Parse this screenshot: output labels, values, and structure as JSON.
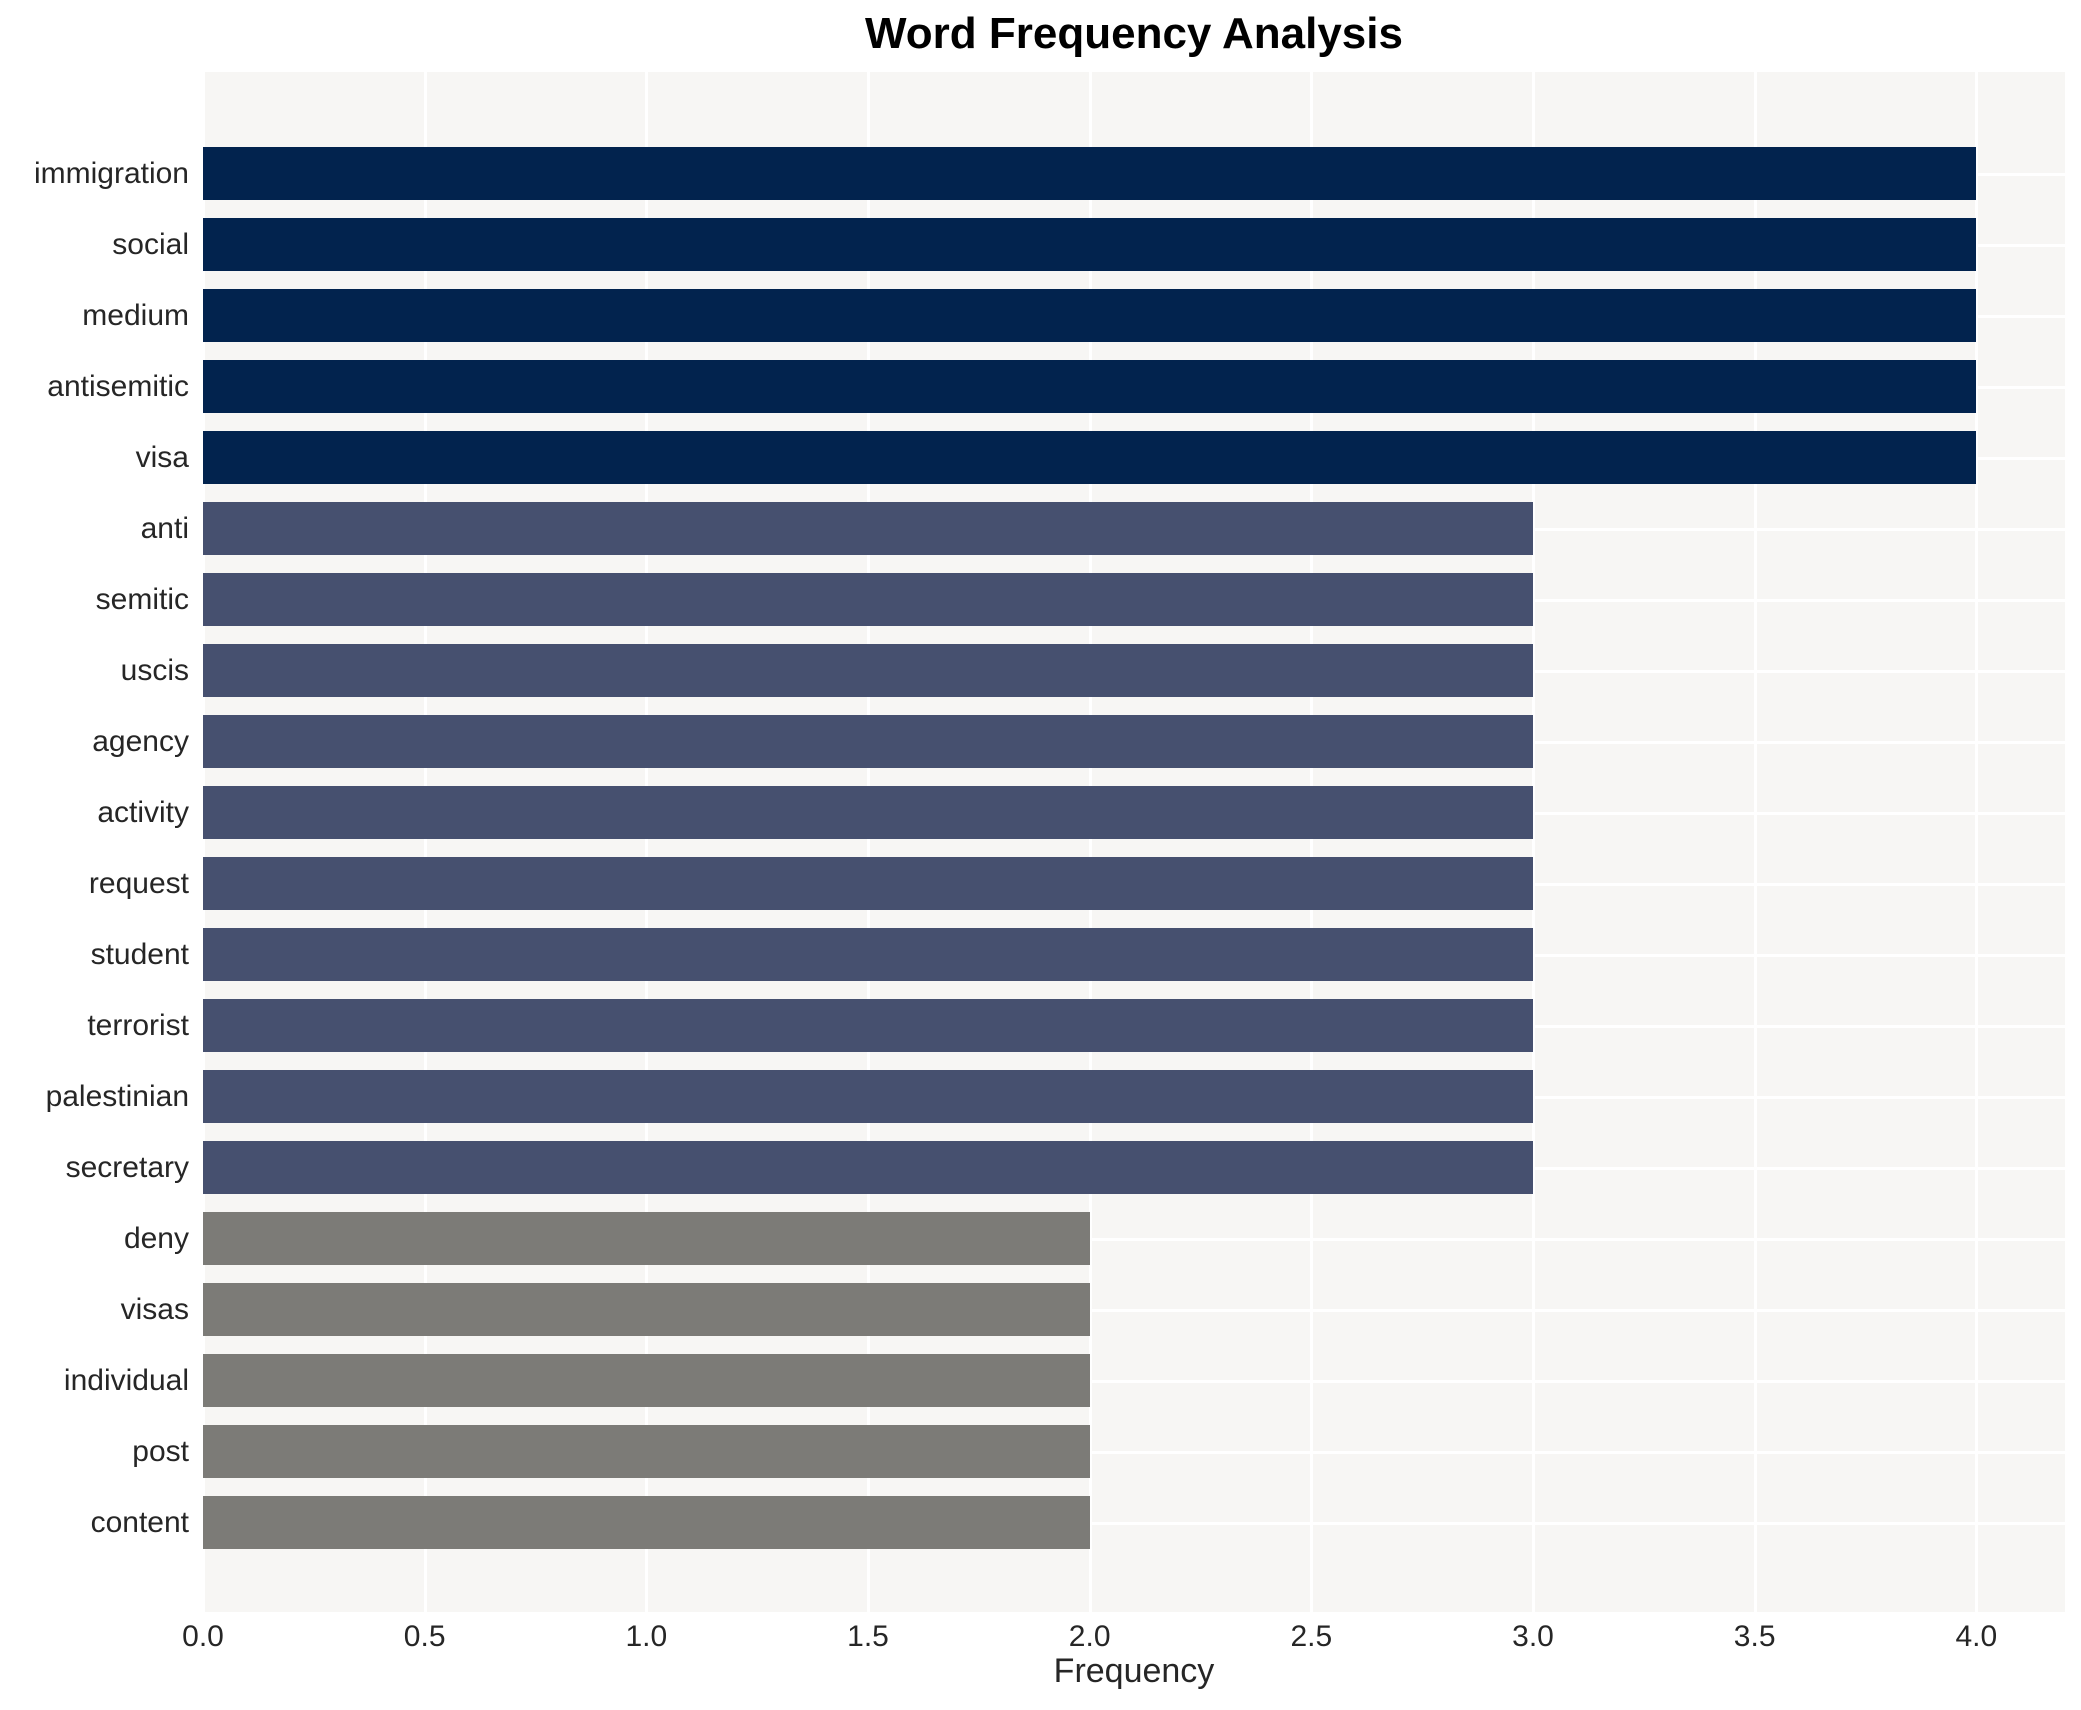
{
  "chart_data": {
    "type": "bar",
    "orientation": "horizontal",
    "title": "Word Frequency Analysis",
    "xlabel": "Frequency",
    "ylabel": "",
    "categories": [
      "immigration",
      "social",
      "medium",
      "antisemitic",
      "visa",
      "anti",
      "semitic",
      "uscis",
      "agency",
      "activity",
      "request",
      "student",
      "terrorist",
      "palestinian",
      "secretary",
      "deny",
      "visas",
      "individual",
      "post",
      "content"
    ],
    "values": [
      4,
      4,
      4,
      4,
      4,
      3,
      3,
      3,
      3,
      3,
      3,
      3,
      3,
      3,
      3,
      2,
      2,
      2,
      2,
      2
    ],
    "x_ticks": [
      0.0,
      0.5,
      1.0,
      1.5,
      2.0,
      2.5,
      3.0,
      3.5,
      4.0
    ],
    "xlim": [
      0,
      4.2
    ],
    "grid": true,
    "legend": "none",
    "colors": {
      "bar_by_value": {
        "4": "#02234e",
        "3": "#46506f",
        "2": "#7c7b77"
      },
      "plot_background": "#f7f6f4",
      "gridline": "#ffffff",
      "tick_text": "#262626",
      "title_text": "#000000"
    }
  }
}
